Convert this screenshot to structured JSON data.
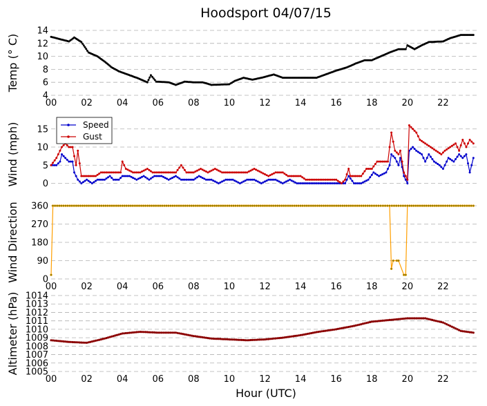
{
  "title": "Hoodsport 04/07/15",
  "xlabel": "Hour (UTC)",
  "x_tick_labels": [
    "00",
    "02",
    "04",
    "06",
    "08",
    "10",
    "12",
    "14",
    "16",
    "18",
    "20",
    "22"
  ],
  "colors": {
    "temp": "#000000",
    "speed": "#0000cc",
    "gust": "#cc0000",
    "direction": "#ff9f00",
    "dir_marker": "#8b7d00",
    "altimeter": "#8b0000",
    "grid": "#b0b0b0"
  },
  "chart_data": [
    {
      "type": "line",
      "ylabel": "Temp ($^\\circ$C)",
      "ylabel_display": "Temp (° C)",
      "ylim": [
        4,
        14
      ],
      "yticks": [
        4,
        6,
        8,
        10,
        12,
        14
      ],
      "grid": true,
      "series": [
        {
          "key": "temp",
          "points": [
            [
              0,
              13
            ],
            [
              1.0,
              12.3
            ],
            [
              1.3,
              12.9
            ],
            [
              1.7,
              12.2
            ],
            [
              2.1,
              10.6
            ],
            [
              2.6,
              10.0
            ],
            [
              3.0,
              9.2
            ],
            [
              3.4,
              8.3
            ],
            [
              3.8,
              7.7
            ],
            [
              4.3,
              7.2
            ],
            [
              4.9,
              6.6
            ],
            [
              5.4,
              6.0
            ],
            [
              5.6,
              7.1
            ],
            [
              5.9,
              6.1
            ],
            [
              6.6,
              6.0
            ],
            [
              7.0,
              5.6
            ],
            [
              7.5,
              6.1
            ],
            [
              8.0,
              6.0
            ],
            [
              8.5,
              6.0
            ],
            [
              9.0,
              5.6
            ],
            [
              10.0,
              5.7
            ],
            [
              10.3,
              6.2
            ],
            [
              10.8,
              6.7
            ],
            [
              11.3,
              6.4
            ],
            [
              11.8,
              6.7
            ],
            [
              12.5,
              7.2
            ],
            [
              13.0,
              6.7
            ],
            [
              14.0,
              6.7
            ],
            [
              14.9,
              6.7
            ],
            [
              15.4,
              7.2
            ],
            [
              16.0,
              7.8
            ],
            [
              16.6,
              8.3
            ],
            [
              17.1,
              8.9
            ],
            [
              17.6,
              9.4
            ],
            [
              18.0,
              9.4
            ],
            [
              18.5,
              10.0
            ],
            [
              19.0,
              10.6
            ],
            [
              19.5,
              11.1
            ],
            [
              19.9,
              11.1
            ],
            [
              20.0,
              11.7
            ],
            [
              20.4,
              11.1
            ],
            [
              20.8,
              11.7
            ],
            [
              21.2,
              12.2
            ],
            [
              22.0,
              12.3
            ],
            [
              22.4,
              12.8
            ],
            [
              23.0,
              13.3
            ],
            [
              23.7,
              13.3
            ]
          ]
        }
      ]
    },
    {
      "type": "line",
      "ylabel": "Wind (mph)",
      "ylim": [
        -2,
        18
      ],
      "yticks": [
        0,
        5,
        10,
        15
      ],
      "grid": true,
      "legend": {
        "position": "top-left",
        "entries": [
          "Speed",
          "Gust"
        ]
      },
      "series": [
        {
          "name": "Speed",
          "key": "speed",
          "points": [
            [
              0,
              5
            ],
            [
              0.3,
              5
            ],
            [
              0.5,
              6
            ],
            [
              0.6,
              8
            ],
            [
              0.8,
              7
            ],
            [
              1.0,
              6
            ],
            [
              1.2,
              6
            ],
            [
              1.3,
              3
            ],
            [
              1.5,
              1
            ],
            [
              1.7,
              0
            ],
            [
              2.0,
              1
            ],
            [
              2.3,
              0
            ],
            [
              2.6,
              1
            ],
            [
              3.0,
              1
            ],
            [
              3.3,
              2
            ],
            [
              3.5,
              1
            ],
            [
              3.8,
              1
            ],
            [
              4.0,
              2
            ],
            [
              4.4,
              2
            ],
            [
              4.8,
              1
            ],
            [
              5.2,
              2
            ],
            [
              5.5,
              1
            ],
            [
              5.8,
              2
            ],
            [
              6.2,
              2
            ],
            [
              6.6,
              1
            ],
            [
              7.0,
              2
            ],
            [
              7.3,
              1
            ],
            [
              7.7,
              1
            ],
            [
              8.0,
              1
            ],
            [
              8.3,
              2
            ],
            [
              8.7,
              1
            ],
            [
              9.0,
              1
            ],
            [
              9.4,
              0
            ],
            [
              9.8,
              1
            ],
            [
              10.2,
              1
            ],
            [
              10.6,
              0
            ],
            [
              11.0,
              1
            ],
            [
              11.4,
              1
            ],
            [
              11.8,
              0
            ],
            [
              12.2,
              1
            ],
            [
              12.6,
              1
            ],
            [
              13.0,
              0
            ],
            [
              13.4,
              1
            ],
            [
              13.8,
              0
            ],
            [
              14.2,
              0
            ],
            [
              14.6,
              0
            ],
            [
              15.0,
              0
            ],
            [
              15.4,
              0
            ],
            [
              15.8,
              0
            ],
            [
              16.2,
              0
            ],
            [
              16.5,
              0
            ],
            [
              16.7,
              2
            ],
            [
              17.0,
              0
            ],
            [
              17.4,
              0
            ],
            [
              17.8,
              1
            ],
            [
              18.1,
              3
            ],
            [
              18.4,
              2
            ],
            [
              18.8,
              3
            ],
            [
              19.0,
              5
            ],
            [
              19.1,
              8
            ],
            [
              19.3,
              7
            ],
            [
              19.5,
              5
            ],
            [
              19.6,
              7
            ],
            [
              19.8,
              2
            ],
            [
              20.0,
              0
            ],
            [
              20.1,
              9
            ],
            [
              20.3,
              10
            ],
            [
              20.5,
              9
            ],
            [
              20.8,
              8
            ],
            [
              21.0,
              6
            ],
            [
              21.2,
              8
            ],
            [
              21.5,
              6
            ],
            [
              21.8,
              5
            ],
            [
              22.0,
              4
            ],
            [
              22.3,
              7
            ],
            [
              22.6,
              6
            ],
            [
              22.9,
              8
            ],
            [
              23.1,
              7
            ],
            [
              23.3,
              8
            ],
            [
              23.5,
              3
            ],
            [
              23.7,
              7
            ]
          ]
        },
        {
          "name": "Gust",
          "key": "gust",
          "points": [
            [
              0,
              5
            ],
            [
              0.3,
              7
            ],
            [
              0.6,
              10
            ],
            [
              0.8,
              11
            ],
            [
              1.0,
              10
            ],
            [
              1.2,
              10
            ],
            [
              1.4,
              5
            ],
            [
              1.5,
              9
            ],
            [
              1.7,
              2
            ],
            [
              2.0,
              2
            ],
            [
              2.5,
              2
            ],
            [
              2.8,
              3
            ],
            [
              3.2,
              3
            ],
            [
              3.5,
              3
            ],
            [
              3.9,
              3
            ],
            [
              4.0,
              6
            ],
            [
              4.2,
              4
            ],
            [
              4.6,
              3
            ],
            [
              5.0,
              3
            ],
            [
              5.4,
              4
            ],
            [
              5.7,
              3
            ],
            [
              6.0,
              3
            ],
            [
              6.5,
              3
            ],
            [
              7.0,
              3
            ],
            [
              7.3,
              5
            ],
            [
              7.6,
              3
            ],
            [
              8.0,
              3
            ],
            [
              8.4,
              4
            ],
            [
              8.8,
              3
            ],
            [
              9.2,
              4
            ],
            [
              9.6,
              3
            ],
            [
              10.0,
              3
            ],
            [
              10.5,
              3
            ],
            [
              11.0,
              3
            ],
            [
              11.4,
              4
            ],
            [
              11.8,
              3
            ],
            [
              12.2,
              2
            ],
            [
              12.6,
              3
            ],
            [
              13.0,
              3
            ],
            [
              13.3,
              2
            ],
            [
              13.6,
              2
            ],
            [
              14.0,
              2
            ],
            [
              14.3,
              1
            ],
            [
              14.7,
              1
            ],
            [
              15.0,
              1
            ],
            [
              15.3,
              1
            ],
            [
              15.7,
              1
            ],
            [
              16.0,
              1
            ],
            [
              16.3,
              0
            ],
            [
              16.5,
              1
            ],
            [
              16.7,
              4
            ],
            [
              16.8,
              2
            ],
            [
              17.1,
              2
            ],
            [
              17.4,
              2
            ],
            [
              17.7,
              4
            ],
            [
              18.0,
              4
            ],
            [
              18.3,
              6
            ],
            [
              18.6,
              6
            ],
            [
              18.9,
              6
            ],
            [
              19.1,
              14
            ],
            [
              19.3,
              9
            ],
            [
              19.5,
              8
            ],
            [
              19.6,
              9
            ],
            [
              19.8,
              3
            ],
            [
              20.0,
              1
            ],
            [
              20.1,
              16
            ],
            [
              20.3,
              15
            ],
            [
              20.5,
              14
            ],
            [
              20.7,
              12
            ],
            [
              21.0,
              11
            ],
            [
              21.3,
              10
            ],
            [
              21.6,
              9
            ],
            [
              21.9,
              8
            ],
            [
              22.1,
              9
            ],
            [
              22.4,
              10
            ],
            [
              22.7,
              11
            ],
            [
              22.9,
              9
            ],
            [
              23.1,
              12
            ],
            [
              23.3,
              10
            ],
            [
              23.5,
              12
            ],
            [
              23.7,
              11
            ]
          ]
        }
      ]
    },
    {
      "type": "line",
      "ylabel": "Wind Direction",
      "ylim": [
        0,
        360
      ],
      "yticks": [
        0,
        90,
        180,
        270,
        360
      ],
      "grid": true,
      "series": [
        {
          "key": "direction",
          "points": [
            [
              0,
              20
            ],
            [
              0.1,
              360
            ],
            [
              2,
              360
            ],
            [
              4,
              360
            ],
            [
              6,
              360
            ],
            [
              8,
              360
            ],
            [
              10,
              360
            ],
            [
              12,
              360
            ],
            [
              14,
              360
            ],
            [
              16,
              360
            ],
            [
              18,
              360
            ],
            [
              19.0,
              360
            ],
            [
              19.1,
              50
            ],
            [
              19.2,
              90
            ],
            [
              19.4,
              90
            ],
            [
              19.5,
              90
            ],
            [
              19.8,
              20
            ],
            [
              19.9,
              20
            ],
            [
              20.0,
              360
            ],
            [
              22,
              360
            ],
            [
              23.7,
              360
            ]
          ]
        }
      ]
    },
    {
      "type": "line",
      "ylabel": "Altimeter (hPa)",
      "ylim": [
        1005,
        1014
      ],
      "yticks": [
        1005,
        1006,
        1007,
        1008,
        1009,
        1010,
        1011,
        1012,
        1013,
        1014
      ],
      "grid": true,
      "series": [
        {
          "key": "altimeter",
          "points": [
            [
              0,
              1008.7
            ],
            [
              1,
              1008.5
            ],
            [
              2,
              1008.4
            ],
            [
              3,
              1008.9
            ],
            [
              4,
              1009.5
            ],
            [
              5,
              1009.7
            ],
            [
              6,
              1009.6
            ],
            [
              7,
              1009.6
            ],
            [
              8,
              1009.2
            ],
            [
              9,
              1008.9
            ],
            [
              10,
              1008.8
            ],
            [
              11,
              1008.7
            ],
            [
              12,
              1008.8
            ],
            [
              13,
              1009.0
            ],
            [
              14,
              1009.3
            ],
            [
              15,
              1009.7
            ],
            [
              16,
              1010.0
            ],
            [
              17,
              1010.4
            ],
            [
              18,
              1010.9
            ],
            [
              19,
              1011.1
            ],
            [
              20,
              1011.3
            ],
            [
              21,
              1011.3
            ],
            [
              22,
              1010.8
            ],
            [
              23,
              1009.8
            ],
            [
              23.7,
              1009.6
            ]
          ]
        }
      ]
    }
  ]
}
